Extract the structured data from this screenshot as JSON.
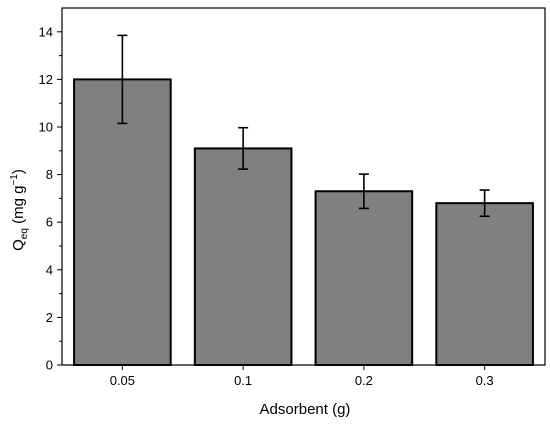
{
  "chart_data": {
    "type": "bar",
    "title": "",
    "xlabel": "Adsorbent (g)",
    "ylabel": "Q",
    "ylabel_sub": "eq",
    "ylabel_unit_open": " (mg g",
    "ylabel_unit_sup": "−1",
    "ylabel_unit_close": ")",
    "categories": [
      "0.05",
      "0.1",
      "0.2",
      "0.3"
    ],
    "values": [
      12.0,
      9.1,
      7.3,
      6.8
    ],
    "errors": [
      1.85,
      0.87,
      0.72,
      0.55
    ],
    "ylim": [
      0,
      15
    ],
    "yticks": [
      0,
      2,
      4,
      6,
      8,
      10,
      12,
      14
    ],
    "bar_color": "#808080",
    "grid": false,
    "legend": "none"
  }
}
